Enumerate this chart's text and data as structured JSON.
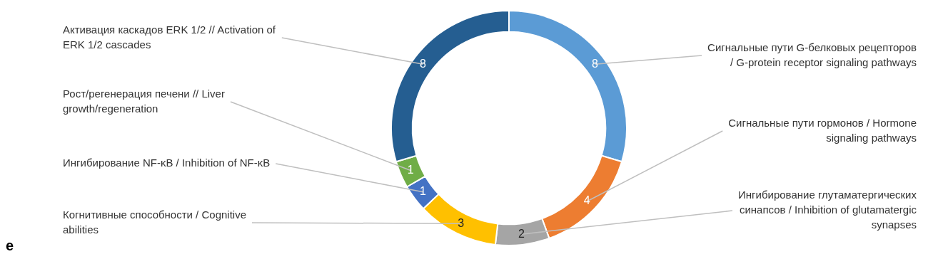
{
  "chart_data": {
    "type": "donut",
    "categories": [
      "Сигнальные пути G-белковых рецепторов / G-protein receptor signaling pathways",
      "Сигнальные пути гормонов / Hormone signaling pathways",
      "Ингибирование глутаматергических синапсов / Inhibition of glutamatergic synapses",
      "Когнитивные способности / Cognitive abilities",
      "Ингибирование NF-κB / Inhibition of NF-κB",
      "Рост/регенерация печени // Liver growth/regeneration",
      "Активация каскадов ERK 1/2 // Activation of ERK 1/2 cascades"
    ],
    "values": [
      8,
      4,
      2,
      3,
      1,
      1,
      8
    ],
    "colors": [
      "#5b9bd5",
      "#ed7d31",
      "#a5a5a5",
      "#ffc000",
      "#4472c4",
      "#70ad47",
      "#255e91"
    ],
    "data_labels": true,
    "legend": false,
    "annotations": [
      "e"
    ]
  }
}
